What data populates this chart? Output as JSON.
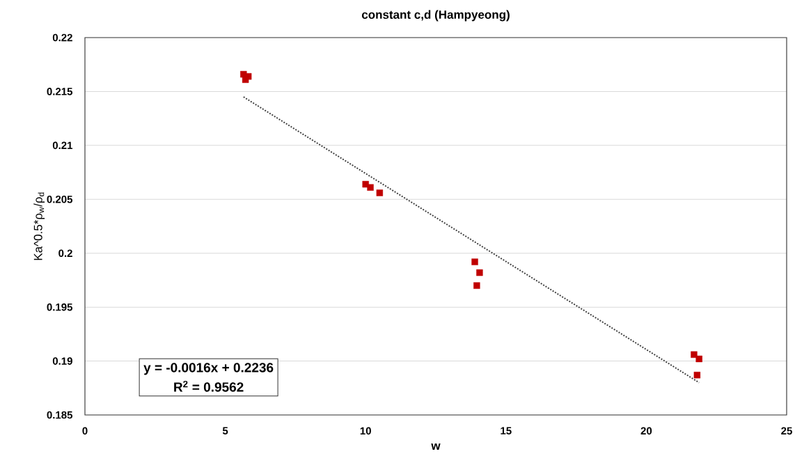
{
  "chart_data": {
    "type": "scatter",
    "title": "constant c,d (Hampyeong)",
    "xlabel": "w",
    "ylabel": "Ka^0.5*ρ$_{w}$/ρ$_{d}$",
    "series": [
      {
        "color": "#c00000",
        "marker": "square",
        "x": [
          5.65,
          5.82,
          5.72,
          10.0,
          10.17,
          10.5,
          13.89,
          14.06,
          13.96,
          21.7,
          21.88,
          21.81
        ],
        "values": [
          0.2166,
          0.2164,
          0.2161,
          0.2064,
          0.2061,
          0.2056,
          0.1992,
          0.1982,
          0.197,
          0.1906,
          0.1902,
          0.1887
        ]
      },
      {
        "type": "line",
        "color": "#404040",
        "line_style": "dotted",
        "marker": "none",
        "x": [
          5.65,
          21.88
        ],
        "values": [
          0.2145,
          0.188
        ]
      }
    ],
    "annotations": [
      "y = -0.0016x + 0.2236",
      "R$^{2}$ = 0.9562"
    ],
    "xlim": [
      0,
      25
    ],
    "xticks": [
      0,
      5,
      10,
      15,
      20,
      25
    ],
    "ylim": [
      0.185,
      0.22
    ],
    "yticks": [
      0.185,
      0.19,
      0.195,
      0.2,
      0.205,
      0.21,
      0.215,
      0.22
    ],
    "grid": "y"
  }
}
